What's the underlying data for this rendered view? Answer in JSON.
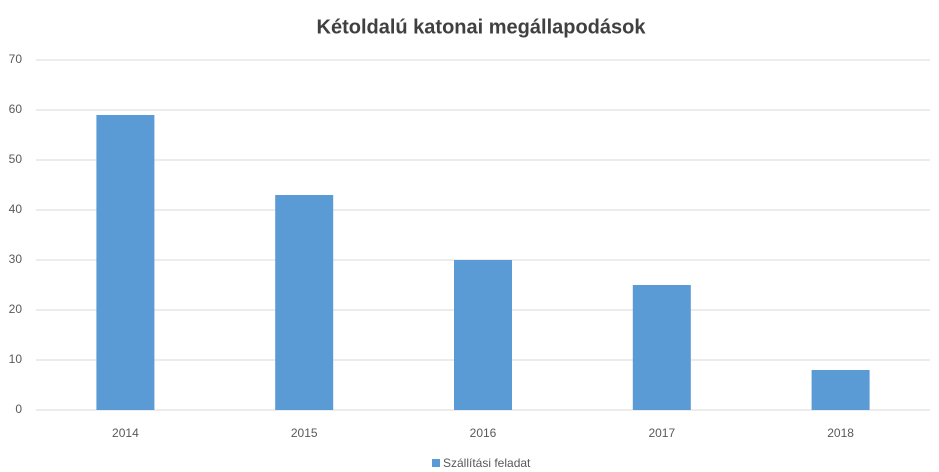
{
  "chart_data": {
    "type": "bar",
    "title": "Kétoldalú katonai megállapodások",
    "categories": [
      "2014",
      "2015",
      "2016",
      "2017",
      "2018"
    ],
    "series": [
      {
        "name": "Szállítási feladat",
        "color": "#5b9bd5",
        "values": [
          59,
          43,
          30,
          25,
          8
        ]
      }
    ],
    "ylim": [
      0,
      70
    ],
    "yticks": [
      0,
      10,
      20,
      30,
      40,
      50,
      60,
      70
    ],
    "grid": true,
    "legend": "bottom"
  }
}
